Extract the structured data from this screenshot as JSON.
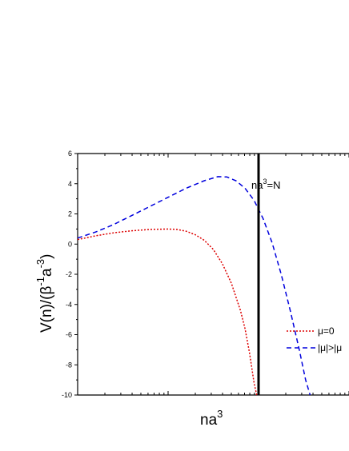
{
  "chart_data": {
    "type": "line",
    "title": "",
    "xlabel": "na",
    "xlabel_superscript": "3",
    "ylabel": "V(n)/(β",
    "ylabel_sup1": "-1",
    "ylabel_mid": "a",
    "ylabel_sup2": "-3",
    "ylabel_end": ")",
    "x_scale": "log",
    "x_tick_labels_shown": false,
    "ylim": [
      -10,
      6
    ],
    "y_ticks": [
      -10,
      -8,
      -6,
      -4,
      -2,
      0,
      2,
      4,
      6
    ],
    "grid": false,
    "legend_position": "right",
    "colors": {
      "mu0": "#dd0000",
      "mu_gt": "#0000dd",
      "vline": "#000000"
    },
    "annotation": {
      "text": "na",
      "superscript": "3",
      "suffix": "=N"
    },
    "series": [
      {
        "name": "μ=0",
        "style": "dotted",
        "points": [
          [
            0.0,
            0.3
          ],
          [
            0.2,
            0.55
          ],
          [
            0.4,
            0.75
          ],
          [
            0.6,
            0.88
          ],
          [
            0.8,
            0.97
          ],
          [
            1.0,
            1.0
          ],
          [
            1.1,
            0.97
          ],
          [
            1.2,
            0.85
          ],
          [
            1.3,
            0.62
          ],
          [
            1.4,
            0.25
          ],
          [
            1.5,
            -0.35
          ],
          [
            1.6,
            -1.3
          ],
          [
            1.7,
            -2.6
          ],
          [
            1.8,
            -4.4
          ],
          [
            1.85,
            -5.6
          ],
          [
            1.9,
            -7.2
          ],
          [
            1.95,
            -9.2
          ],
          [
            1.98,
            -10
          ]
        ]
      },
      {
        "name": "|μ|>|μ",
        "style": "dashed",
        "points": [
          [
            0.0,
            0.4
          ],
          [
            0.2,
            0.8
          ],
          [
            0.4,
            1.3
          ],
          [
            0.6,
            1.9
          ],
          [
            0.8,
            2.5
          ],
          [
            1.0,
            3.1
          ],
          [
            1.2,
            3.7
          ],
          [
            1.4,
            4.2
          ],
          [
            1.55,
            4.47
          ],
          [
            1.65,
            4.45
          ],
          [
            1.75,
            4.2
          ],
          [
            1.85,
            3.7
          ],
          [
            1.95,
            2.9
          ],
          [
            2.05,
            1.7
          ],
          [
            2.15,
            0.1
          ],
          [
            2.25,
            -2.0
          ],
          [
            2.35,
            -4.4
          ],
          [
            2.45,
            -7.0
          ],
          [
            2.52,
            -9.0
          ],
          [
            2.57,
            -10
          ]
        ]
      }
    ],
    "vertical_line_x": 2.0
  }
}
